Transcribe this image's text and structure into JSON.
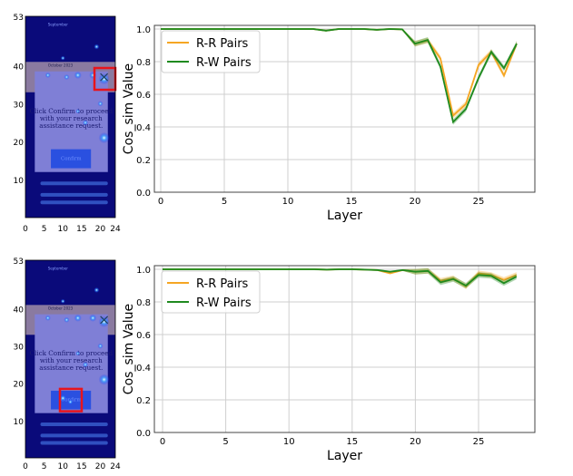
{
  "panels": [
    {
      "heatmap": {
        "x_ticks": [
          0,
          5,
          10,
          15,
          20,
          24
        ],
        "y_ticks": [
          53,
          40,
          30,
          20,
          10
        ],
        "screen": {
          "month": "September",
          "section": "October 2023",
          "dialog_text": [
            "Click Confirm to proceed",
            "with your research",
            "assistance request."
          ],
          "button": "Confirm"
        },
        "highlight": "close-button"
      }
    },
    {
      "heatmap": {
        "x_ticks": [
          0,
          5,
          10,
          15,
          20,
          24
        ],
        "y_ticks": [
          53,
          40,
          30,
          20,
          10
        ],
        "screen": {
          "month": "September",
          "section": "October 2023",
          "dialog_text": [
            "Click Confirm to proceed",
            "with your research",
            "assistance request."
          ],
          "button": "Confirm"
        },
        "highlight": "confirm-button"
      }
    }
  ],
  "colors": {
    "rr": "#f5a623",
    "rw": "#1f8a1f",
    "highlight": "#e8141c"
  },
  "chart_data": [
    {
      "type": "line",
      "xlabel": "Layer",
      "ylabel": "Cos_sim Value",
      "xlim": [
        0,
        28
      ],
      "ylim": [
        0,
        1.0
      ],
      "x_ticks": [
        0,
        5,
        10,
        15,
        20,
        25
      ],
      "y_ticks": [
        0.0,
        0.2,
        0.4,
        0.6,
        0.8,
        1.0
      ],
      "grid": true,
      "legend": "top-left",
      "x": [
        0,
        1,
        2,
        3,
        4,
        5,
        6,
        7,
        8,
        9,
        10,
        11,
        12,
        13,
        14,
        15,
        16,
        17,
        18,
        19,
        20,
        21,
        22,
        23,
        24,
        25,
        26,
        27,
        28
      ],
      "series": [
        {
          "name": "R-R Pairs",
          "values": [
            1,
            1,
            1,
            1,
            1,
            1,
            1,
            1,
            1,
            1,
            1,
            1,
            1,
            0.99,
            1,
            1,
            1,
            0.995,
            1,
            0.998,
            0.91,
            0.93,
            0.82,
            0.47,
            0.54,
            0.78,
            0.86,
            0.715,
            0.91
          ]
        },
        {
          "name": "R-W Pairs",
          "values": [
            1,
            1,
            1,
            1,
            1,
            1,
            1,
            1,
            1,
            1,
            1,
            1,
            1,
            0.99,
            1,
            1,
            1,
            0.995,
            1,
            0.998,
            0.91,
            0.933,
            0.77,
            0.43,
            0.51,
            0.7,
            0.86,
            0.76,
            0.91
          ]
        }
      ]
    },
    {
      "type": "line",
      "xlabel": "Layer",
      "ylabel": "Cos_sim Value",
      "xlim": [
        0,
        28
      ],
      "ylim": [
        0,
        1.0
      ],
      "x_ticks": [
        0,
        5,
        10,
        15,
        20,
        25
      ],
      "y_ticks": [
        0.0,
        0.2,
        0.4,
        0.6,
        0.8,
        1.0
      ],
      "grid": true,
      "legend": "top-left",
      "x": [
        0,
        1,
        2,
        3,
        4,
        5,
        6,
        7,
        8,
        9,
        10,
        11,
        12,
        13,
        14,
        15,
        16,
        17,
        18,
        19,
        20,
        21,
        22,
        23,
        24,
        25,
        26,
        27,
        28
      ],
      "series": [
        {
          "name": "R-R Pairs",
          "values": [
            1,
            1,
            1,
            1,
            1,
            1,
            1,
            1,
            1,
            1,
            1,
            1,
            1,
            0.998,
            1,
            1,
            0.998,
            0.995,
            0.975,
            0.995,
            0.985,
            0.99,
            0.93,
            0.945,
            0.895,
            0.975,
            0.965,
            0.935,
            0.965
          ]
        },
        {
          "name": "R-W Pairs",
          "values": [
            1,
            1,
            1,
            1,
            1,
            1,
            1,
            1,
            1,
            1,
            1,
            1,
            1,
            0.998,
            1,
            1,
            0.998,
            0.995,
            0.985,
            0.995,
            0.985,
            0.99,
            0.92,
            0.94,
            0.9,
            0.965,
            0.96,
            0.915,
            0.955
          ]
        }
      ]
    }
  ]
}
